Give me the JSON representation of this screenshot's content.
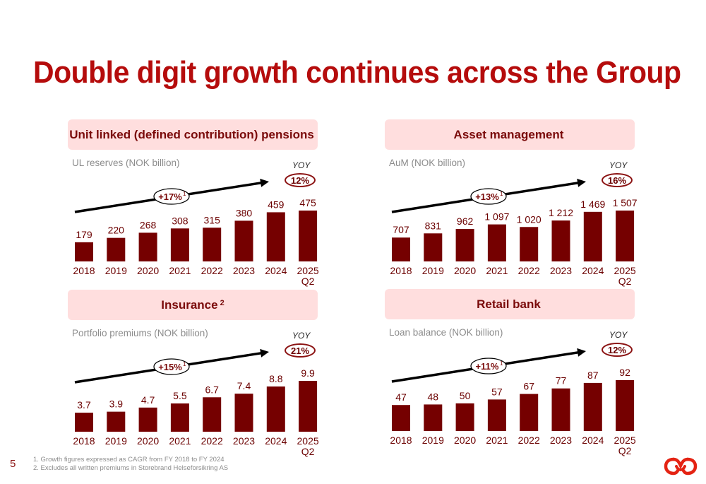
{
  "page": {
    "title": "Double digit growth continues across the Group",
    "page_number": "5",
    "footnotes": [
      "1. Growth figures expressed as CAGR from FY 2018 to FY 2024",
      "2. Excludes all written premiums in Storebrand Helseforsikring AS"
    ],
    "logo": "storebrand-logo-icon",
    "colors": {
      "title": "#b50c0c",
      "bar": "#750000",
      "header_bg": "#ffdede",
      "header_text": "#7a0a0a"
    }
  },
  "chart_data": [
    {
      "type": "bar",
      "title": "Unit linked (defined contribution) pensions",
      "title_sup": "",
      "ylabel": "UL reserves (NOK billion)",
      "categories": [
        "2018",
        "2019",
        "2020",
        "2021",
        "2022",
        "2023",
        "2024",
        "2025 Q2"
      ],
      "values": [
        179,
        220,
        268,
        308,
        315,
        380,
        459,
        475
      ],
      "value_labels": [
        "179",
        "220",
        "268",
        "308",
        "315",
        "380",
        "459",
        "475"
      ],
      "cagr": "+17%",
      "cagr_note": "1",
      "yoy_label": "YOY",
      "yoy": "12%"
    },
    {
      "type": "bar",
      "title": "Asset management",
      "title_sup": "",
      "ylabel": "AuM (NOK billion)",
      "categories": [
        "2018",
        "2019",
        "2020",
        "2021",
        "2022",
        "2023",
        "2024",
        "2025 Q2"
      ],
      "values": [
        707,
        831,
        962,
        1097,
        1020,
        1212,
        1469,
        1507
      ],
      "value_labels": [
        "707",
        "831",
        "962",
        "1 097",
        "1 020",
        "1 212",
        "1 469",
        "1 507"
      ],
      "cagr": "+13%",
      "cagr_note": "1",
      "yoy_label": "YOY",
      "yoy": "16%"
    },
    {
      "type": "bar",
      "title": "Insurance",
      "title_sup": "2",
      "ylabel": "Portfolio premiums (NOK billion)",
      "categories": [
        "2018",
        "2019",
        "2020",
        "2021",
        "2022",
        "2023",
        "2024",
        "2025 Q2"
      ],
      "values": [
        3.7,
        3.9,
        4.7,
        5.5,
        6.7,
        7.4,
        8.8,
        9.9
      ],
      "value_labels": [
        "3.7",
        "3.9",
        "4.7",
        "5.5",
        "6.7",
        "7.4",
        "8.8",
        "9.9"
      ],
      "cagr": "+15%",
      "cagr_note": "1",
      "yoy_label": "YOY",
      "yoy": "21%"
    },
    {
      "type": "bar",
      "title": "Retail bank",
      "title_sup": "",
      "ylabel": "Loan balance (NOK billion)",
      "categories": [
        "2018",
        "2019",
        "2020",
        "2021",
        "2022",
        "2023",
        "2024",
        "2025 Q2"
      ],
      "values": [
        47,
        48,
        50,
        57,
        67,
        77,
        87,
        92
      ],
      "value_labels": [
        "47",
        "48",
        "50",
        "57",
        "67",
        "77",
        "87",
        "92"
      ],
      "cagr": "+11%",
      "cagr_note": "1",
      "yoy_label": "YOY",
      "yoy": "12%"
    }
  ]
}
